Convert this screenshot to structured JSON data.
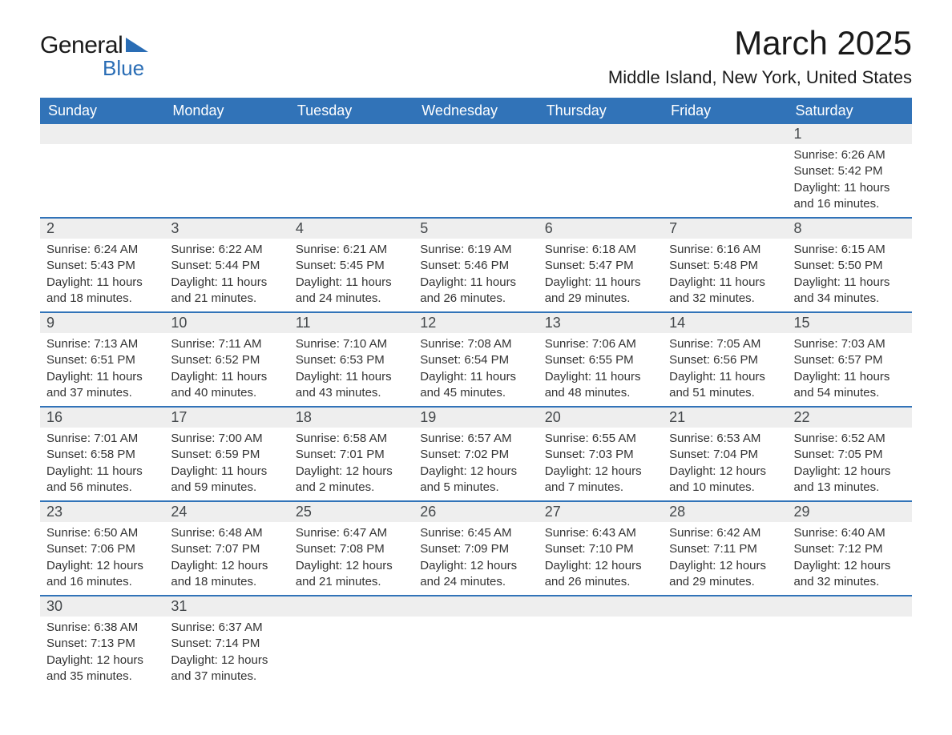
{
  "brand": {
    "part1": "General",
    "part2": "Blue"
  },
  "title": "March 2025",
  "location": "Middle Island, New York, United States",
  "colors": {
    "header_bg": "#3173b8",
    "header_text": "#ffffff",
    "daynum_bg": "#eeeeee",
    "row_border": "#3173b8",
    "body_text": "#333333",
    "title_text": "#1a1a1a",
    "logo_blue": "#2a6db5",
    "page_bg": "#ffffff"
  },
  "dayHeaders": [
    "Sunday",
    "Monday",
    "Tuesday",
    "Wednesday",
    "Thursday",
    "Friday",
    "Saturday"
  ],
  "labels": {
    "sunrise": "Sunrise:",
    "sunset": "Sunset:",
    "daylight": "Daylight:"
  },
  "weeks": [
    [
      null,
      null,
      null,
      null,
      null,
      null,
      {
        "n": "1",
        "sr": "6:26 AM",
        "ss": "5:42 PM",
        "dl": "11 hours and 16 minutes."
      }
    ],
    [
      {
        "n": "2",
        "sr": "6:24 AM",
        "ss": "5:43 PM",
        "dl": "11 hours and 18 minutes."
      },
      {
        "n": "3",
        "sr": "6:22 AM",
        "ss": "5:44 PM",
        "dl": "11 hours and 21 minutes."
      },
      {
        "n": "4",
        "sr": "6:21 AM",
        "ss": "5:45 PM",
        "dl": "11 hours and 24 minutes."
      },
      {
        "n": "5",
        "sr": "6:19 AM",
        "ss": "5:46 PM",
        "dl": "11 hours and 26 minutes."
      },
      {
        "n": "6",
        "sr": "6:18 AM",
        "ss": "5:47 PM",
        "dl": "11 hours and 29 minutes."
      },
      {
        "n": "7",
        "sr": "6:16 AM",
        "ss": "5:48 PM",
        "dl": "11 hours and 32 minutes."
      },
      {
        "n": "8",
        "sr": "6:15 AM",
        "ss": "5:50 PM",
        "dl": "11 hours and 34 minutes."
      }
    ],
    [
      {
        "n": "9",
        "sr": "7:13 AM",
        "ss": "6:51 PM",
        "dl": "11 hours and 37 minutes."
      },
      {
        "n": "10",
        "sr": "7:11 AM",
        "ss": "6:52 PM",
        "dl": "11 hours and 40 minutes."
      },
      {
        "n": "11",
        "sr": "7:10 AM",
        "ss": "6:53 PM",
        "dl": "11 hours and 43 minutes."
      },
      {
        "n": "12",
        "sr": "7:08 AM",
        "ss": "6:54 PM",
        "dl": "11 hours and 45 minutes."
      },
      {
        "n": "13",
        "sr": "7:06 AM",
        "ss": "6:55 PM",
        "dl": "11 hours and 48 minutes."
      },
      {
        "n": "14",
        "sr": "7:05 AM",
        "ss": "6:56 PM",
        "dl": "11 hours and 51 minutes."
      },
      {
        "n": "15",
        "sr": "7:03 AM",
        "ss": "6:57 PM",
        "dl": "11 hours and 54 minutes."
      }
    ],
    [
      {
        "n": "16",
        "sr": "7:01 AM",
        "ss": "6:58 PM",
        "dl": "11 hours and 56 minutes."
      },
      {
        "n": "17",
        "sr": "7:00 AM",
        "ss": "6:59 PM",
        "dl": "11 hours and 59 minutes."
      },
      {
        "n": "18",
        "sr": "6:58 AM",
        "ss": "7:01 PM",
        "dl": "12 hours and 2 minutes."
      },
      {
        "n": "19",
        "sr": "6:57 AM",
        "ss": "7:02 PM",
        "dl": "12 hours and 5 minutes."
      },
      {
        "n": "20",
        "sr": "6:55 AM",
        "ss": "7:03 PM",
        "dl": "12 hours and 7 minutes."
      },
      {
        "n": "21",
        "sr": "6:53 AM",
        "ss": "7:04 PM",
        "dl": "12 hours and 10 minutes."
      },
      {
        "n": "22",
        "sr": "6:52 AM",
        "ss": "7:05 PM",
        "dl": "12 hours and 13 minutes."
      }
    ],
    [
      {
        "n": "23",
        "sr": "6:50 AM",
        "ss": "7:06 PM",
        "dl": "12 hours and 16 minutes."
      },
      {
        "n": "24",
        "sr": "6:48 AM",
        "ss": "7:07 PM",
        "dl": "12 hours and 18 minutes."
      },
      {
        "n": "25",
        "sr": "6:47 AM",
        "ss": "7:08 PM",
        "dl": "12 hours and 21 minutes."
      },
      {
        "n": "26",
        "sr": "6:45 AM",
        "ss": "7:09 PM",
        "dl": "12 hours and 24 minutes."
      },
      {
        "n": "27",
        "sr": "6:43 AM",
        "ss": "7:10 PM",
        "dl": "12 hours and 26 minutes."
      },
      {
        "n": "28",
        "sr": "6:42 AM",
        "ss": "7:11 PM",
        "dl": "12 hours and 29 minutes."
      },
      {
        "n": "29",
        "sr": "6:40 AM",
        "ss": "7:12 PM",
        "dl": "12 hours and 32 minutes."
      }
    ],
    [
      {
        "n": "30",
        "sr": "6:38 AM",
        "ss": "7:13 PM",
        "dl": "12 hours and 35 minutes."
      },
      {
        "n": "31",
        "sr": "6:37 AM",
        "ss": "7:14 PM",
        "dl": "12 hours and 37 minutes."
      },
      null,
      null,
      null,
      null,
      null
    ]
  ]
}
